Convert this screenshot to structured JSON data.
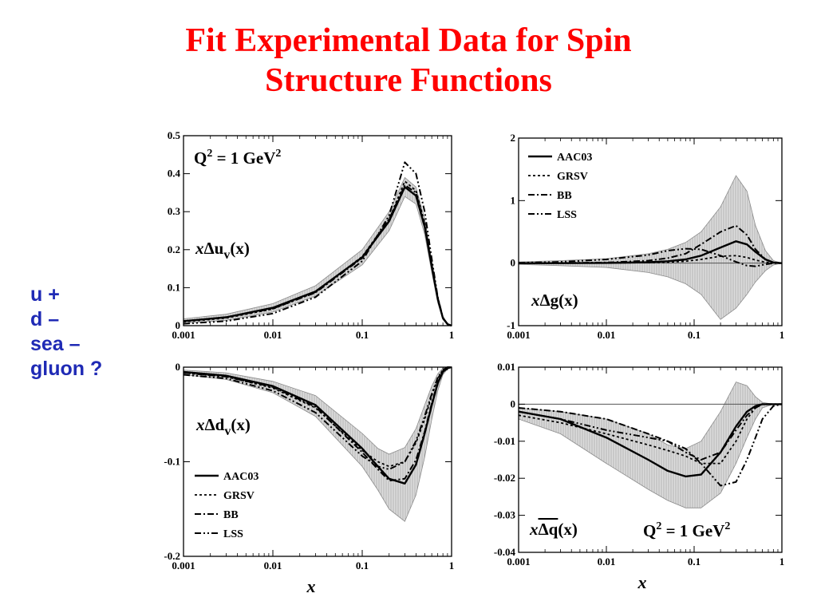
{
  "slide": {
    "title_line1": "Fit Experimental Data for Spin",
    "title_line2": "Structure Functions",
    "side_labels": [
      "u +",
      "d –",
      "sea –",
      "gluon ?"
    ],
    "xlabel": "x"
  },
  "legend": [
    "AAC03",
    "GRSV",
    "BB",
    "LSS"
  ],
  "chart_data": [
    {
      "type": "line",
      "xscale": "log",
      "xlim": [
        0.001,
        1
      ],
      "ylim": [
        0,
        0.5
      ],
      "xticks": [
        "0.001",
        "0.01",
        "0.1",
        "1"
      ],
      "yticks": [
        "0",
        "0.1",
        "0.2",
        "0.3",
        "0.4",
        "0.5"
      ],
      "ytick_values": [
        0,
        0.1,
        0.2,
        0.3,
        0.4,
        0.5
      ],
      "label_prefix": "xΔu",
      "label_sub": "v",
      "label_suffix": "(x)",
      "annotation_main": "Q",
      "annotation_sup1": "2",
      "annotation_mid": " = 1 GeV",
      "annotation_sup2": "2",
      "x": [
        0.001,
        0.003,
        0.01,
        0.03,
        0.1,
        0.2,
        0.3,
        0.4,
        0.5,
        0.6,
        0.7,
        0.8,
        0.9,
        1
      ],
      "band": {
        "upper": [
          0.018,
          0.03,
          0.058,
          0.105,
          0.2,
          0.3,
          0.39,
          0.365,
          0.28,
          0.17,
          0.08,
          0.025,
          0.005,
          0
        ],
        "lower": [
          0.006,
          0.014,
          0.036,
          0.078,
          0.16,
          0.25,
          0.34,
          0.32,
          0.24,
          0.14,
          0.06,
          0.016,
          0.003,
          0
        ]
      },
      "series": [
        {
          "name": "AAC03",
          "values": [
            0.012,
            0.022,
            0.047,
            0.09,
            0.18,
            0.275,
            0.365,
            0.342,
            0.26,
            0.155,
            0.07,
            0.02,
            0.004,
            0
          ]
        },
        {
          "name": "GRSV",
          "values": [
            0.01,
            0.02,
            0.044,
            0.088,
            0.182,
            0.28,
            0.38,
            0.355,
            0.27,
            0.16,
            0.072,
            0.021,
            0.004,
            0
          ]
        },
        {
          "name": "BB",
          "values": [
            0.012,
            0.022,
            0.045,
            0.087,
            0.178,
            0.28,
            0.37,
            0.35,
            0.265,
            0.158,
            0.07,
            0.02,
            0.004,
            0
          ]
        },
        {
          "name": "LSS",
          "values": [
            0.005,
            0.012,
            0.032,
            0.075,
            0.17,
            0.29,
            0.43,
            0.4,
            0.3,
            0.175,
            0.075,
            0.021,
            0.004,
            0
          ]
        }
      ]
    },
    {
      "type": "line",
      "xscale": "log",
      "xlim": [
        0.001,
        1
      ],
      "ylim": [
        -1,
        2
      ],
      "xticks": [
        "0.001",
        "0.01",
        "0.1",
        "1"
      ],
      "yticks": [
        "-1",
        "0",
        "1",
        "2"
      ],
      "ytick_values": [
        -1,
        0,
        1,
        2
      ],
      "label_prefix": "xΔg",
      "label_sub": "",
      "label_suffix": "(x)",
      "zero_line": true,
      "legend_placement": "top-left",
      "x": [
        0.001,
        0.003,
        0.01,
        0.03,
        0.05,
        0.08,
        0.12,
        0.2,
        0.3,
        0.4,
        0.5,
        0.65,
        0.8,
        1
      ],
      "band": {
        "upper": [
          0.02,
          0.04,
          0.07,
          0.15,
          0.22,
          0.33,
          0.5,
          0.9,
          1.4,
          1.15,
          0.6,
          0.2,
          0.04,
          0
        ],
        "lower": [
          -0.02,
          -0.04,
          -0.07,
          -0.15,
          -0.22,
          -0.33,
          -0.5,
          -0.9,
          -0.72,
          -0.5,
          -0.3,
          -0.12,
          -0.03,
          0
        ]
      },
      "series": [
        {
          "name": "AAC03",
          "values": [
            0,
            0,
            0.003,
            0.015,
            0.03,
            0.06,
            0.12,
            0.25,
            0.35,
            0.3,
            0.18,
            0.06,
            0.01,
            0
          ]
        },
        {
          "name": "GRSV",
          "values": [
            0,
            0,
            0.002,
            0.008,
            0.015,
            0.03,
            0.06,
            0.11,
            0.12,
            0.09,
            0.05,
            0.015,
            0.002,
            0
          ]
        },
        {
          "name": "BB",
          "values": [
            0,
            0.002,
            0.01,
            0.04,
            0.08,
            0.15,
            0.3,
            0.5,
            0.6,
            0.45,
            0.22,
            0.06,
            0.01,
            0
          ]
        },
        {
          "name": "LSS",
          "values": [
            0.005,
            0.02,
            0.06,
            0.13,
            0.2,
            0.23,
            0.22,
            0.12,
            0.02,
            -0.04,
            -0.05,
            -0.02,
            0,
            0
          ]
        }
      ]
    },
    {
      "type": "line",
      "xscale": "log",
      "xlim": [
        0.001,
        1
      ],
      "ylim": [
        -0.2,
        0
      ],
      "xticks": [
        "0.001",
        "0.01",
        "0.1",
        "1"
      ],
      "yticks": [
        "-0.2",
        "-0.1",
        "0"
      ],
      "ytick_values": [
        -0.2,
        -0.1,
        0
      ],
      "label_prefix": "xΔd",
      "label_sub": "v",
      "label_suffix": "(x)",
      "legend_placement": "bottom-left",
      "x": [
        0.001,
        0.003,
        0.01,
        0.03,
        0.1,
        0.15,
        0.2,
        0.3,
        0.4,
        0.5,
        0.6,
        0.7,
        0.8,
        0.9,
        1
      ],
      "band": {
        "upper": [
          -0.003,
          -0.006,
          -0.015,
          -0.03,
          -0.07,
          -0.086,
          -0.092,
          -0.085,
          -0.065,
          -0.04,
          -0.02,
          -0.007,
          -0.001,
          0,
          0
        ],
        "lower": [
          -0.008,
          -0.013,
          -0.027,
          -0.052,
          -0.105,
          -0.13,
          -0.15,
          -0.163,
          -0.135,
          -0.095,
          -0.055,
          -0.025,
          -0.008,
          -0.002,
          0
        ]
      },
      "series": [
        {
          "name": "AAC03",
          "values": [
            -0.005,
            -0.009,
            -0.02,
            -0.04,
            -0.086,
            -0.105,
            -0.118,
            -0.123,
            -0.103,
            -0.07,
            -0.04,
            -0.017,
            -0.005,
            -0.001,
            0
          ]
        },
        {
          "name": "GRSV",
          "values": [
            -0.006,
            -0.01,
            -0.022,
            -0.043,
            -0.088,
            -0.1,
            -0.105,
            -0.1,
            -0.08,
            -0.055,
            -0.03,
            -0.012,
            -0.003,
            0,
            0
          ]
        },
        {
          "name": "BB",
          "values": [
            -0.006,
            -0.01,
            -0.021,
            -0.042,
            -0.09,
            -0.108,
            -0.12,
            -0.118,
            -0.098,
            -0.068,
            -0.038,
            -0.016,
            -0.004,
            -0.001,
            0
          ]
        },
        {
          "name": "LSS",
          "values": [
            -0.008,
            -0.012,
            -0.025,
            -0.048,
            -0.094,
            -0.105,
            -0.108,
            -0.1,
            -0.078,
            -0.052,
            -0.028,
            -0.011,
            -0.003,
            0,
            0
          ]
        }
      ]
    },
    {
      "type": "line",
      "xscale": "log",
      "xlim": [
        0.001,
        1
      ],
      "ylim": [
        -0.04,
        0.01
      ],
      "xticks": [
        "0.001",
        "0.01",
        "0.1",
        "1"
      ],
      "yticks": [
        "-0.04",
        "-0.03",
        "-0.02",
        "-0.01",
        "0",
        "0.01"
      ],
      "ytick_values": [
        -0.04,
        -0.03,
        -0.02,
        -0.01,
        0,
        0.01
      ],
      "label_prefix": "xΔq",
      "label_bar": true,
      "label_sub": "",
      "label_suffix": "(x)",
      "zero_line": true,
      "annotation_main": "Q",
      "annotation_sup1": "2",
      "annotation_mid": " = 1 GeV",
      "annotation_sup2": "2",
      "x": [
        0.001,
        0.003,
        0.01,
        0.03,
        0.05,
        0.08,
        0.12,
        0.2,
        0.3,
        0.4,
        0.5,
        0.6,
        0.8,
        1
      ],
      "band": {
        "upper": [
          -0.001,
          -0.002,
          -0.004,
          -0.008,
          -0.011,
          -0.012,
          -0.01,
          -0.002,
          0.006,
          0.005,
          0.002,
          0.0005,
          0,
          0
        ],
        "lower": [
          -0.004,
          -0.008,
          -0.016,
          -0.023,
          -0.026,
          -0.028,
          -0.028,
          -0.024,
          -0.016,
          -0.009,
          -0.004,
          -0.001,
          0,
          0
        ]
      },
      "series": [
        {
          "name": "AAC03",
          "values": [
            -0.002,
            -0.004,
            -0.009,
            -0.015,
            -0.018,
            -0.0195,
            -0.019,
            -0.013,
            -0.006,
            -0.002,
            -0.0005,
            0,
            0,
            0
          ]
        },
        {
          "name": "GRSV",
          "values": [
            -0.003,
            -0.005,
            -0.008,
            -0.011,
            -0.0125,
            -0.014,
            -0.016,
            -0.016,
            -0.01,
            -0.004,
            -0.001,
            0,
            0,
            0
          ]
        },
        {
          "name": "BB",
          "values": [
            -0.001,
            -0.002,
            -0.004,
            -0.008,
            -0.01,
            -0.013,
            -0.015,
            -0.013,
            -0.007,
            -0.003,
            -0.001,
            0,
            0,
            0
          ]
        },
        {
          "name": "LSS",
          "values": [
            -0.002,
            -0.004,
            -0.007,
            -0.009,
            -0.01,
            -0.012,
            -0.016,
            -0.022,
            -0.021,
            -0.015,
            -0.009,
            -0.004,
            -0.0005,
            0
          ]
        }
      ]
    }
  ]
}
